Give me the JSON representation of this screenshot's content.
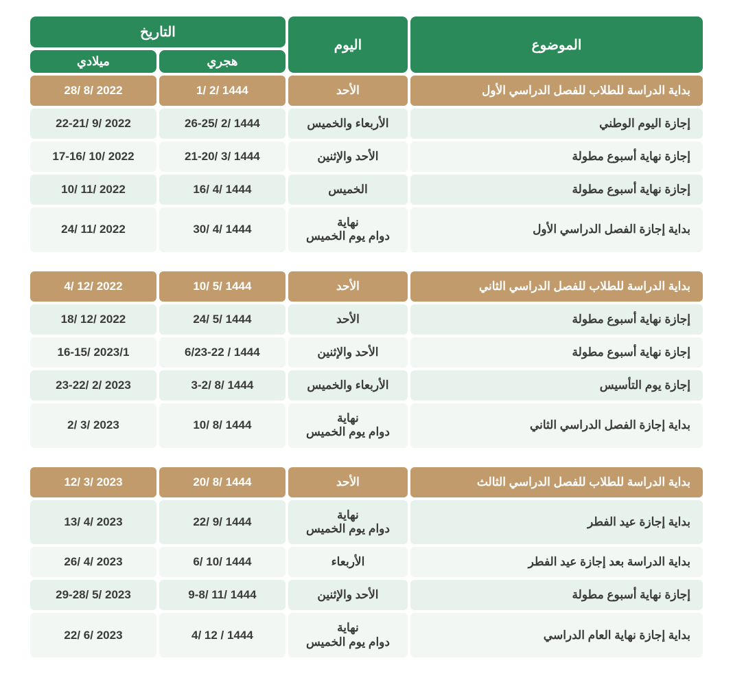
{
  "headers": {
    "subject": "الموضوع",
    "day": "اليوم",
    "date": "التاريخ",
    "hijri": "هجري",
    "gregorian": "ميلادي"
  },
  "styling": {
    "header_bg": "#2b8a5a",
    "header_fg": "#ffffff",
    "highlight_bg": "#c19b6c",
    "highlight_fg": "#ffffff",
    "alt1_bg": "#e8f2ed",
    "alt2_bg": "#f2f7f4",
    "text_color": "#3a3a3a",
    "header_font_size": 20,
    "cell_font_size": 17,
    "border_radius": 8
  },
  "groups": [
    {
      "rows": [
        {
          "style": "highlight",
          "subject": "بداية الدراسة للطلاب للفصل الدراسي الأول",
          "day": "الأحد",
          "hijri": "1444 /2 /1",
          "gregorian": "2022 /8 /28"
        },
        {
          "style": "alt1",
          "subject": "إجازة اليوم الوطني",
          "day": "الأربعاء والخميس",
          "hijri": "1444 /2 /26-25",
          "gregorian": "2022 /9 /22-21"
        },
        {
          "style": "alt2",
          "subject": "إجازة نهاية أسبوع مطولة",
          "day": "الأحد والإثنين",
          "hijri": "1444 /3 /21-20",
          "gregorian": "2022 /10 /17-16"
        },
        {
          "style": "alt1",
          "subject": "إجازة نهاية أسبوع مطولة",
          "day": "الخميس",
          "hijri": "1444 /4 /16",
          "gregorian": "2022 /11 /10"
        },
        {
          "style": "alt2",
          "subject": "بداية إجازة الفصل الدراسي الأول",
          "day": "نهاية\nدوام يوم الخميس",
          "hijri": "1444 /4 /30",
          "gregorian": "2022 /11 /24"
        }
      ]
    },
    {
      "rows": [
        {
          "style": "highlight",
          "subject": "بداية الدراسة للطلاب للفصل الدراسي الثاني",
          "day": "الأحد",
          "hijri": "1444 /5 /10",
          "gregorian": "2022 /12 /4"
        },
        {
          "style": "alt1",
          "subject": "إجازة نهاية أسبوع مطولة",
          "day": "الأحد",
          "hijri": "1444 /5 /24",
          "gregorian": "2022 /12 /18"
        },
        {
          "style": "alt2",
          "subject": "إجازة نهاية أسبوع مطولة",
          "day": "الأحد والإثنين",
          "hijri": "1444 / 6/23-22",
          "gregorian": "2023/1 /16-15"
        },
        {
          "style": "alt1",
          "subject": "إجازة يوم التأسيس",
          "day": "الأربعاء والخميس",
          "hijri": "1444 /8 /3-2",
          "gregorian": "2023 /2 /23-22"
        },
        {
          "style": "alt2",
          "subject": "بداية إجازة الفصل الدراسي الثاني",
          "day": "نهاية\nدوام يوم الخميس",
          "hijri": "1444 /8 /10",
          "gregorian": "2023 /3 /2"
        }
      ]
    },
    {
      "rows": [
        {
          "style": "highlight",
          "subject": "بداية الدراسة للطلاب للفصل الدراسي الثالث",
          "day": "الأحد",
          "hijri": "1444 /8 /20",
          "gregorian": "2023 /3 /12"
        },
        {
          "style": "alt1",
          "subject": "بداية إجازة عيد الفطر",
          "day": "نهاية\nدوام يوم الخميس",
          "hijri": "1444 /9 /22",
          "gregorian": "2023 /4 /13"
        },
        {
          "style": "alt2",
          "subject": "بداية الدراسة بعد إجازة عيد الفطر",
          "day": "الأربعاء",
          "hijri": "1444 /10 /6",
          "gregorian": "2023 /4 /26"
        },
        {
          "style": "alt1",
          "subject": "إجازة نهاية أسبوع مطولة",
          "day": "الأحد والإثنين",
          "hijri": "1444 /11 /9-8",
          "gregorian": "2023 /5 /29-28"
        },
        {
          "style": "alt2",
          "subject": "بداية إجازة نهاية العام الدراسي",
          "day": "نهاية\nدوام يوم الخميس",
          "hijri": "1444 / 12 /4",
          "gregorian": "2023 /6 /22"
        }
      ]
    }
  ]
}
